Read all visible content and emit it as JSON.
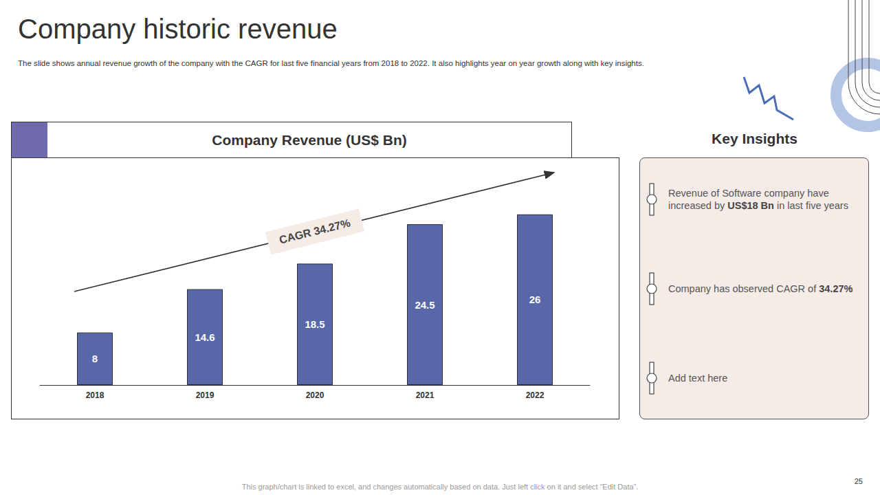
{
  "page": {
    "title": "Company historic revenue",
    "subtitle": "The slide shows annual revenue growth of the company with the CAGR for last five financial years from 2018 to 2022. It also highlights year on year growth along with key insights.",
    "footer": "This graph/chart is linked to excel, and changes automatically based on data. Just left click on it and select “Edit Data”.",
    "page_number": 25
  },
  "chart_data": {
    "type": "bar",
    "title": "Company Revenue (US$ Bn)",
    "categories": [
      "2018",
      "2019",
      "2020",
      "2021",
      "2022"
    ],
    "values": [
      8,
      14.6,
      18.5,
      24.5,
      26
    ],
    "color": "#5767a8",
    "ylim": [
      0,
      33
    ],
    "yticks": [
      0,
      33
    ],
    "grid": false,
    "data_labels": true,
    "tick_labels": "x",
    "annotations": [
      "CAGR 34.27%"
    ]
  },
  "insights": {
    "title": "Key Insights",
    "items": [
      [
        {
          "text": "Revenue of Software company have increased by "
        },
        {
          "text": "US$18 Bn",
          "bold": true
        },
        {
          "text": " in last five years"
        }
      ],
      [
        {
          "text": "Company has observed CAGR of "
        },
        {
          "text": "34.27%",
          "bold": true
        }
      ],
      [
        {
          "text": "Add text here"
        }
      ]
    ]
  }
}
